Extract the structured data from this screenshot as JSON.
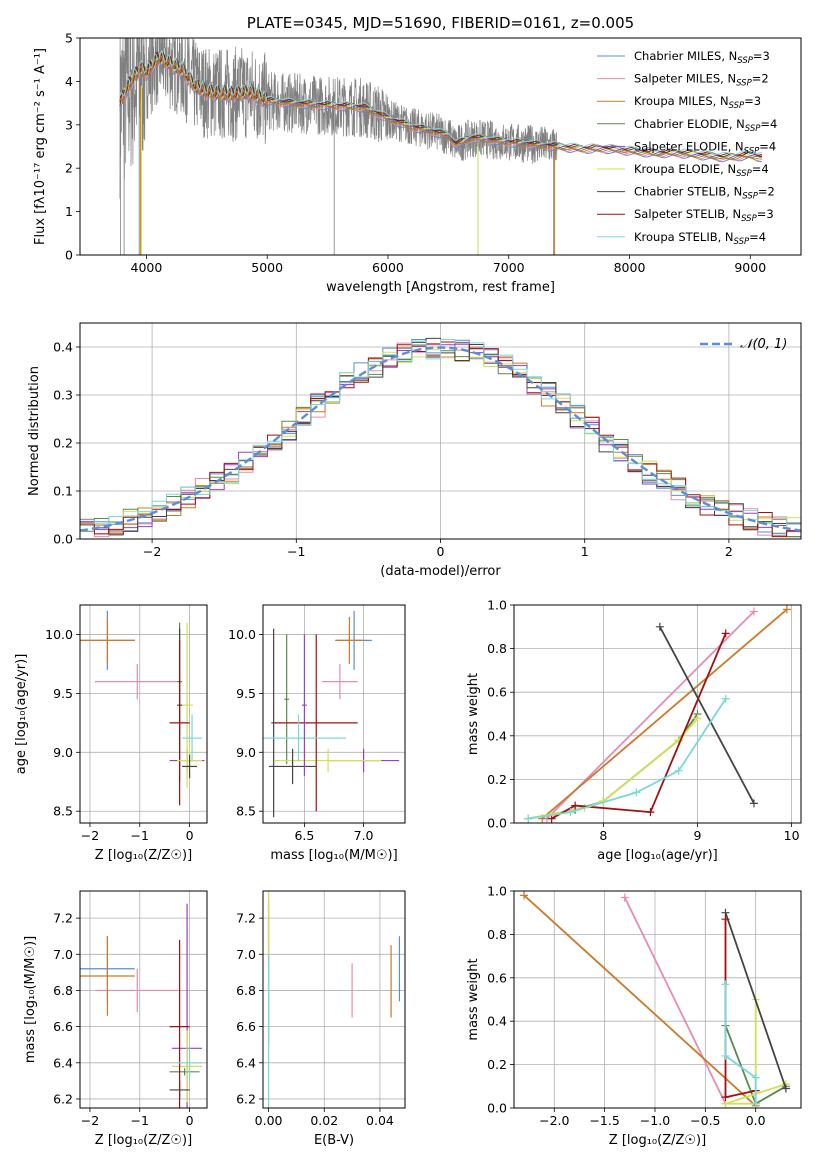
{
  "colors": {
    "Chabrier MILES": "#5b8ed6",
    "Salpeter MILES": "#e68bb3",
    "Kroupa MILES": "#cc7a29",
    "Chabrier ELODIE": "#5a8a4e",
    "Salpeter ELODIE": "#9b3fbf",
    "Kroupa ELODIE": "#d2e052",
    "Chabrier STELIB": "#444444",
    "Salpeter STELIB": "#a01010",
    "Kroupa STELIB": "#7ad8d8",
    "data": "#808080",
    "normal": "#5b8ed6"
  },
  "chart_data": [
    {
      "id": "spectrum",
      "type": "line",
      "title": "PLATE=0345, MJD=51690, FIBERID=0161, z=0.005",
      "xlabel": "wavelength [Angstrom, rest frame]",
      "ylabel": "Flux [fλ10⁻¹⁷ erg cm⁻² s⁻¹ A⁻¹]",
      "xlim": [
        3450,
        9420
      ],
      "ylim": [
        0,
        5
      ],
      "xticks": [
        4000,
        5000,
        6000,
        7000,
        8000,
        9000
      ],
      "yticks": [
        0,
        1,
        2,
        3,
        4,
        5
      ],
      "legend_position": "top-right",
      "model_continuum": {
        "x": [
          3780,
          3850,
          3950,
          4000,
          4100,
          4200,
          4300,
          4400,
          4500,
          4700,
          4860,
          5000,
          5200,
          5500,
          5800,
          6000,
          6200,
          6300,
          6500,
          6560,
          6700,
          7000,
          7200,
          7400,
          7600,
          7800,
          8000,
          8200,
          8400,
          8600,
          8800,
          9000,
          9100
        ],
        "y": [
          3.5,
          3.9,
          4.3,
          4.2,
          4.55,
          4.4,
          4.25,
          3.9,
          3.75,
          3.7,
          3.75,
          3.55,
          3.5,
          3.45,
          3.4,
          3.15,
          2.95,
          2.9,
          2.75,
          2.55,
          2.7,
          2.6,
          2.55,
          2.5,
          2.45,
          2.45,
          2.4,
          2.35,
          2.35,
          2.3,
          2.25,
          2.3,
          2.25
        ]
      },
      "series": [
        {
          "name": "Chabrier MILES, N_SSP=3"
        },
        {
          "name": "Salpeter MILES, N_SSP=2"
        },
        {
          "name": "Kroupa MILES, N_SSP=3"
        },
        {
          "name": "Chabrier ELODIE, N_SSP=4"
        },
        {
          "name": "Salpeter ELODIE, N_SSP=4"
        },
        {
          "name": "Kroupa ELODIE, N_SSP=4"
        },
        {
          "name": "Chabrier STELIB, N_SSP=2"
        },
        {
          "name": "Salpeter STELIB, N_SSP=3"
        },
        {
          "name": "Kroupa STELIB, N_SSP=4"
        }
      ]
    },
    {
      "id": "residuals",
      "type": "line",
      "xlabel": "(data-model)/error",
      "ylabel": "Normed distribution",
      "xlim": [
        -2.5,
        2.5
      ],
      "ylim": [
        0,
        0.45
      ],
      "xticks": [
        -2,
        -1,
        0,
        1,
        2
      ],
      "yticks": [
        0.0,
        0.1,
        0.2,
        0.3,
        0.4
      ],
      "legend": "𝒩(0, 1)",
      "legend_position": "top-right",
      "bin_width": 0.1
    },
    {
      "id": "age-vs-Z",
      "type": "scatter",
      "xlabel": "Z [log₁₀(Z/Z☉)]",
      "ylabel": "age  [log₁₀(age/yr)]",
      "xlim": [
        -2.2,
        0.35
      ],
      "ylim": [
        8.4,
        10.25
      ],
      "xticks": [
        -2,
        -1,
        0
      ],
      "yticks": [
        8.5,
        9.0,
        9.5,
        10.0
      ],
      "points": [
        {
          "s": 0,
          "x": -1.65,
          "y": 9.95,
          "xerr": 0.55,
          "yerr": 0.25
        },
        {
          "s": 1,
          "x": -1.05,
          "y": 9.6,
          "xerr": 0.85,
          "yerr": 0.15
        },
        {
          "s": 2,
          "x": -1.65,
          "y": 9.95,
          "xerr": 0.55,
          "yerr": 0.2
        },
        {
          "s": 3,
          "x": -0.2,
          "y": 9.6,
          "xerr": 0.05,
          "yerr": 0.5
        },
        {
          "s": 4,
          "x": -0.05,
          "y": 8.93,
          "xerr": 0.35,
          "yerr": 0.1
        },
        {
          "s": 5,
          "x": -0.05,
          "y": 9.4,
          "xerr": 0.12,
          "yerr": 0.7
        },
        {
          "s": 6,
          "x": -0.2,
          "y": 9.4,
          "xerr": 0.05,
          "yerr": 0.65
        },
        {
          "s": 7,
          "x": -0.2,
          "y": 9.25,
          "xerr": 0.2,
          "yerr": 0.7
        },
        {
          "s": 8,
          "x": 0.05,
          "y": 9.12,
          "xerr": 0.2,
          "yerr": 0.2
        },
        {
          "s": 5,
          "x": 0.0,
          "y": 8.93,
          "xerr": 0.25,
          "yerr": 0.15
        },
        {
          "s": 6,
          "x": 0.0,
          "y": 8.88,
          "xerr": 0.15,
          "yerr": 0.1
        }
      ]
    },
    {
      "id": "age-vs-mass",
      "type": "scatter",
      "xlabel": "mass [log₁₀(M/M☉)]",
      "ylabel": "",
      "xlim": [
        6.15,
        7.35
      ],
      "ylim": [
        8.4,
        10.25
      ],
      "xticks": [
        6.5,
        7.0
      ],
      "yticks": [
        8.5,
        9.0,
        9.5,
        10.0
      ],
      "points": [
        {
          "s": 0,
          "x": 6.92,
          "y": 9.95,
          "xerr": 0.15,
          "yerr": 0.25
        },
        {
          "s": 1,
          "x": 6.8,
          "y": 9.6,
          "xerr": 0.15,
          "yerr": 0.15
        },
        {
          "s": 2,
          "x": 6.88,
          "y": 9.95,
          "xerr": 0.12,
          "yerr": 0.2
        },
        {
          "s": 3,
          "x": 6.35,
          "y": 9.45,
          "xerr": 0.02,
          "yerr": 0.55
        },
        {
          "s": 4,
          "x": 7.0,
          "y": 8.93,
          "xerr": 0.3,
          "yerr": 0.1
        },
        {
          "s": 5,
          "x": 6.7,
          "y": 8.93,
          "xerr": 0.45,
          "yerr": 0.1
        },
        {
          "s": 6,
          "x": 6.24,
          "y": 9.25,
          "xerr": 0.02,
          "yerr": 0.8
        },
        {
          "s": 7,
          "x": 6.6,
          "y": 9.25,
          "xerr": 0.35,
          "yerr": 0.75
        },
        {
          "s": 8,
          "x": 6.45,
          "y": 9.12,
          "xerr": 0.4,
          "yerr": 0.2
        },
        {
          "s": 6,
          "x": 6.4,
          "y": 8.88,
          "xerr": 0.2,
          "yerr": 0.15
        },
        {
          "s": 4,
          "x": 6.5,
          "y": 9.4,
          "xerr": 0.02,
          "yerr": 0.6
        }
      ]
    },
    {
      "id": "weight-vs-age",
      "type": "line",
      "xlabel": "age  [log₁₀(age/yr)]",
      "ylabel": "mass weight",
      "xlim": [
        7.05,
        10.1
      ],
      "ylim": [
        0,
        1
      ],
      "xticks": [
        8,
        9,
        10
      ],
      "yticks": [
        0.0,
        0.2,
        0.4,
        0.6,
        0.8,
        1.0
      ],
      "series": [
        {
          "s": 1,
          "x": [
            7.4,
            9.6
          ],
          "y": [
            0.02,
            0.97
          ]
        },
        {
          "s": 2,
          "x": [
            7.35,
            9.95
          ],
          "y": [
            0.02,
            0.98
          ]
        },
        {
          "s": 3,
          "x": [
            7.2,
            7.7,
            8.0,
            8.8,
            9.0
          ],
          "y": [
            0.02,
            0.06,
            0.1,
            0.38,
            0.5
          ]
        },
        {
          "s": 5,
          "x": [
            7.2,
            7.8,
            8.0,
            8.8,
            9.0
          ],
          "y": [
            0.02,
            0.07,
            0.1,
            0.38,
            0.48
          ]
        },
        {
          "s": 6,
          "x": [
            8.6,
            9.6
          ],
          "y": [
            0.9,
            0.09
          ]
        },
        {
          "s": 7,
          "x": [
            7.45,
            7.7,
            8.5,
            9.3
          ],
          "y": [
            0.02,
            0.08,
            0.05,
            0.87
          ]
        },
        {
          "s": 8,
          "x": [
            7.2,
            7.65,
            8.35,
            8.8,
            9.3
          ],
          "y": [
            0.02,
            0.05,
            0.14,
            0.24,
            0.57
          ]
        }
      ]
    },
    {
      "id": "mass-vs-Z",
      "type": "scatter",
      "xlabel": "Z [log₁₀(Z/Z☉)]",
      "ylabel": "mass [log₁₀(M/M☉)]",
      "xlim": [
        -2.2,
        0.35
      ],
      "ylim": [
        6.15,
        7.35
      ],
      "xticks": [
        -2,
        -1,
        0
      ],
      "yticks": [
        6.2,
        6.4,
        6.6,
        6.8,
        7.0,
        7.2
      ],
      "points": [
        {
          "s": 0,
          "x": -1.65,
          "y": 6.92,
          "xerr": 0.55,
          "yerr": 0.18
        },
        {
          "s": 1,
          "x": -1.05,
          "y": 6.8,
          "xerr": 0.85,
          "yerr": 0.12
        },
        {
          "s": 2,
          "x": -1.65,
          "y": 6.88,
          "xerr": 0.55,
          "yerr": 0.22
        },
        {
          "s": 3,
          "x": -0.1,
          "y": 6.35,
          "xerr": 0.3,
          "yerr": 0.02
        },
        {
          "s": 4,
          "x": -0.05,
          "y": 6.48,
          "xerr": 0.3,
          "yerr": 0.8
        },
        {
          "s": 5,
          "x": -0.05,
          "y": 6.38,
          "xerr": 0.3,
          "yerr": 0.2
        },
        {
          "s": 6,
          "x": -0.2,
          "y": 6.25,
          "xerr": 0.2,
          "yerr": 0.05
        },
        {
          "s": 7,
          "x": -0.2,
          "y": 6.6,
          "xerr": 0.2,
          "yerr": 0.48
        },
        {
          "s": 8,
          "x": 0.0,
          "y": 6.4,
          "xerr": 0.25,
          "yerr": 0.1
        }
      ]
    },
    {
      "id": "mass-vs-ebv",
      "type": "scatter",
      "xlabel": "E(B-V)",
      "ylabel": "",
      "xlim": [
        -0.002,
        0.049
      ],
      "ylim": [
        6.15,
        7.35
      ],
      "xticks": [
        0.0,
        0.02,
        0.04
      ],
      "yticks": [
        6.2,
        6.4,
        6.6,
        6.8,
        7.0,
        7.2
      ],
      "points": [
        {
          "s": 0,
          "x": 0.047,
          "y": 6.92,
          "xerr": 0,
          "yerr": 0.18
        },
        {
          "s": 1,
          "x": 0.03,
          "y": 6.8,
          "xerr": 0,
          "yerr": 0.15
        },
        {
          "s": 2,
          "x": 0.044,
          "y": 6.85,
          "xerr": 0,
          "yerr": 0.2
        },
        {
          "s": 4,
          "x": 0.0,
          "y": 6.9,
          "xerr": 0,
          "yerr": 0.4
        },
        {
          "s": 5,
          "x": 0.0,
          "y": 6.8,
          "xerr": 0,
          "yerr": 0.6
        },
        {
          "s": 8,
          "x": 0.0,
          "y": 6.5,
          "xerr": 0,
          "yerr": 0.5
        }
      ]
    },
    {
      "id": "weight-vs-Z",
      "type": "line",
      "xlabel": "Z [log₁₀(Z/Z☉)]",
      "ylabel": "mass weight",
      "xlim": [
        -2.4,
        0.45
      ],
      "ylim": [
        0,
        1
      ],
      "xticks": [
        -2.0,
        -1.5,
        -1.0,
        -0.5,
        0.0
      ],
      "yticks": [
        0.0,
        0.2,
        0.4,
        0.6,
        0.8,
        1.0
      ],
      "series": [
        {
          "s": 1,
          "x": [
            -1.3,
            -0.3
          ],
          "y": [
            0.97,
            0.02
          ]
        },
        {
          "s": 2,
          "x": [
            -2.3,
            0.0
          ],
          "y": [
            0.98,
            0.01
          ]
        },
        {
          "s": 3,
          "x": [
            -0.3,
            0.0,
            0.3
          ],
          "y": [
            0.38,
            0.02,
            0.1
          ]
        },
        {
          "s": 5,
          "x": [
            0.0,
            0.0,
            -0.3,
            0.3
          ],
          "y": [
            0.5,
            0.02,
            0.02,
            0.11
          ]
        },
        {
          "s": 6,
          "x": [
            -0.3,
            0.3
          ],
          "y": [
            0.9,
            0.09
          ]
        },
        {
          "s": 7,
          "x": [
            -0.3,
            -0.3,
            0.0
          ],
          "y": [
            0.87,
            0.05,
            0.08
          ]
        },
        {
          "s": 8,
          "x": [
            -0.3,
            -0.3,
            0.0,
            0.0
          ],
          "y": [
            0.57,
            0.24,
            0.14,
            0.02
          ]
        }
      ]
    }
  ]
}
